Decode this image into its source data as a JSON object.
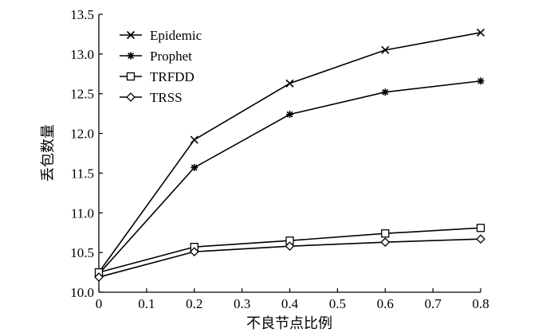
{
  "chart_data": {
    "type": "line",
    "title": "",
    "xlabel": "不良节点比例",
    "ylabel": "丢包数量",
    "xlim": [
      0,
      0.8
    ],
    "ylim": [
      10.0,
      13.5
    ],
    "x_ticks": [
      "0",
      "0.1",
      "0.2",
      "0.3",
      "0.4",
      "0.5",
      "0.6",
      "0.7",
      "0.8"
    ],
    "y_ticks": [
      "10.0",
      "10.5",
      "11.0",
      "11.5",
      "12.0",
      "12.5",
      "13.0",
      "13.5"
    ],
    "x": [
      0,
      0.2,
      0.4,
      0.6,
      0.8
    ],
    "legend_position": "top-left",
    "grid": false,
    "series": [
      {
        "name": "Epidemic",
        "marker": "x",
        "values": [
          10.25,
          11.92,
          12.63,
          13.05,
          13.27
        ]
      },
      {
        "name": "Prophet",
        "marker": "asterisk",
        "values": [
          10.23,
          11.57,
          12.24,
          12.52,
          12.66
        ]
      },
      {
        "name": "TRFDD",
        "marker": "square",
        "values": [
          10.25,
          10.57,
          10.65,
          10.74,
          10.81
        ]
      },
      {
        "name": "TRSS",
        "marker": "diamond",
        "values": [
          10.19,
          10.51,
          10.58,
          10.63,
          10.67
        ]
      }
    ]
  }
}
